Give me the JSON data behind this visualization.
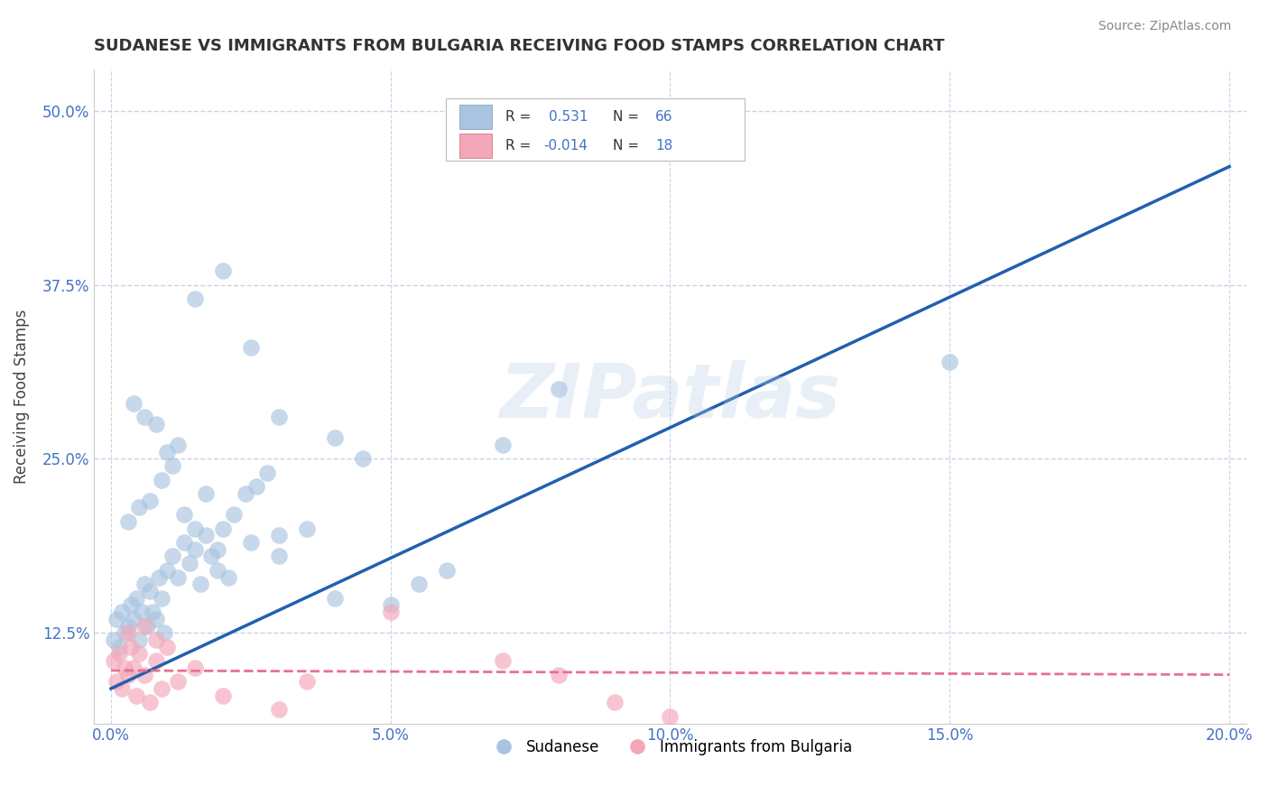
{
  "title": "SUDANESE VS IMMIGRANTS FROM BULGARIA RECEIVING FOOD STAMPS CORRELATION CHART",
  "source": "Source: ZipAtlas.com",
  "xlabel_vals": [
    0.0,
    5.0,
    10.0,
    15.0,
    20.0
  ],
  "ylabel": "Receiving Food Stamps",
  "ylabel_ticks": [
    "12.5%",
    "25.0%",
    "37.5%",
    "50.0%"
  ],
  "ylabel_vals": [
    12.5,
    25.0,
    37.5,
    50.0
  ],
  "xlim": [
    -0.3,
    20.3
  ],
  "ylim": [
    6.0,
    53.0
  ],
  "blue_color": "#a8c4e0",
  "pink_color": "#f4a7b9",
  "blue_line_color": "#2060b0",
  "pink_line_color": "#e87090",
  "grid_color": "#c8d4e8",
  "watermark": "ZIPatlas",
  "blue_scatter_x": [
    0.05,
    0.1,
    0.15,
    0.2,
    0.25,
    0.3,
    0.35,
    0.4,
    0.45,
    0.5,
    0.55,
    0.6,
    0.65,
    0.7,
    0.75,
    0.8,
    0.85,
    0.9,
    0.95,
    1.0,
    1.1,
    1.2,
    1.3,
    1.4,
    1.5,
    1.6,
    1.7,
    1.8,
    1.9,
    2.0,
    2.2,
    2.4,
    2.6,
    2.8,
    3.0,
    0.3,
    0.5,
    0.7,
    0.9,
    1.1,
    1.3,
    1.5,
    1.7,
    1.9,
    2.1,
    1.0,
    1.2,
    0.8,
    0.6,
    0.4,
    3.5,
    4.0,
    4.5,
    5.0,
    5.5,
    6.0,
    7.0,
    8.0,
    3.0,
    2.5,
    15.0,
    1.5,
    2.0,
    2.5,
    3.0,
    4.0
  ],
  "blue_scatter_y": [
    12.0,
    13.5,
    11.5,
    14.0,
    12.5,
    13.0,
    14.5,
    13.5,
    15.0,
    12.0,
    14.0,
    16.0,
    13.0,
    15.5,
    14.0,
    13.5,
    16.5,
    15.0,
    12.5,
    17.0,
    18.0,
    16.5,
    19.0,
    17.5,
    18.5,
    16.0,
    19.5,
    18.0,
    17.0,
    20.0,
    21.0,
    22.5,
    23.0,
    24.0,
    19.5,
    20.5,
    21.5,
    22.0,
    23.5,
    24.5,
    21.0,
    20.0,
    22.5,
    18.5,
    16.5,
    25.5,
    26.0,
    27.5,
    28.0,
    29.0,
    20.0,
    26.5,
    25.0,
    14.5,
    16.0,
    17.0,
    26.0,
    30.0,
    18.0,
    19.0,
    32.0,
    36.5,
    38.5,
    33.0,
    28.0,
    15.0
  ],
  "pink_scatter_x": [
    0.05,
    0.1,
    0.15,
    0.2,
    0.25,
    0.3,
    0.35,
    0.4,
    0.45,
    0.5,
    0.6,
    0.7,
    0.8,
    0.9,
    1.0,
    1.2,
    1.5,
    2.0,
    3.0,
    5.0,
    7.0,
    8.0,
    9.0,
    10.0,
    3.5,
    0.3,
    0.6,
    0.8
  ],
  "pink_scatter_y": [
    10.5,
    9.0,
    11.0,
    8.5,
    10.0,
    9.5,
    11.5,
    10.0,
    8.0,
    11.0,
    9.5,
    7.5,
    10.5,
    8.5,
    11.5,
    9.0,
    10.0,
    8.0,
    7.0,
    14.0,
    10.5,
    9.5,
    7.5,
    6.5,
    9.0,
    12.5,
    13.0,
    12.0
  ],
  "blue_line_x0": 0.0,
  "blue_line_y0": 8.5,
  "blue_line_x1": 20.0,
  "blue_line_y1": 46.0,
  "pink_line_x0": 0.0,
  "pink_line_y0": 9.8,
  "pink_line_x1": 20.0,
  "pink_line_y1": 9.5
}
